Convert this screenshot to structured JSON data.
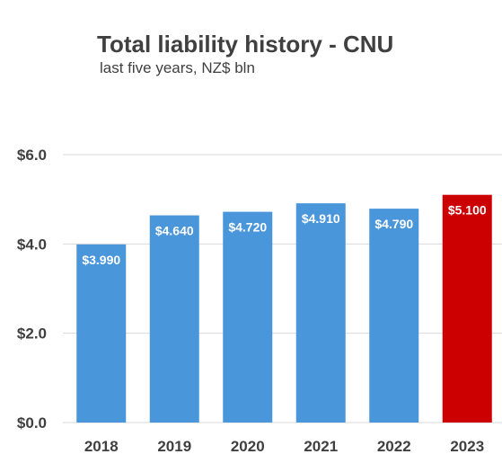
{
  "chart_data": {
    "type": "bar",
    "title": "Total liability history - CNU",
    "subtitle": "last five years, NZ$ bln",
    "categories": [
      "2018",
      "2019",
      "2020",
      "2021",
      "2022",
      "2023"
    ],
    "values": [
      3.99,
      4.64,
      4.72,
      4.91,
      4.79,
      5.1
    ],
    "data_labels": [
      "$3.990",
      "$4.640",
      "$4.720",
      "$4.910",
      "$4.790",
      "$5.100"
    ],
    "bar_colors": [
      "#4a96db",
      "#4a96db",
      "#4a96db",
      "#4a96db",
      "#4a96db",
      "#cc0000"
    ],
    "ylim": [
      0,
      6
    ],
    "y_ticks": [
      0,
      2,
      4,
      6
    ],
    "y_tick_labels": [
      "$0.0",
      "$2.0",
      "$4.0",
      "$6.0"
    ],
    "grid": true,
    "legend": "none",
    "xlabel": "",
    "ylabel": ""
  },
  "colors": {
    "gridline": "#d9d9d9",
    "text": "#404040"
  }
}
